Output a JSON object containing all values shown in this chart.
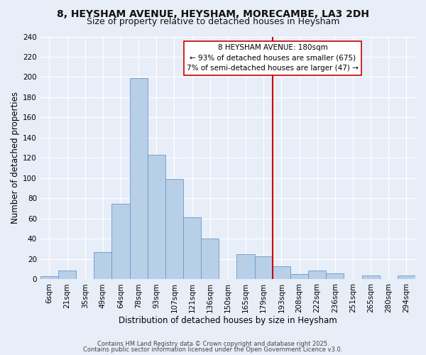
{
  "title": "8, HEYSHAM AVENUE, HEYSHAM, MORECAMBE, LA3 2DH",
  "subtitle": "Size of property relative to detached houses in Heysham",
  "xlabel": "Distribution of detached houses by size in Heysham",
  "ylabel": "Number of detached properties",
  "bar_labels": [
    "6sqm",
    "21sqm",
    "35sqm",
    "49sqm",
    "64sqm",
    "78sqm",
    "93sqm",
    "107sqm",
    "121sqm",
    "136sqm",
    "150sqm",
    "165sqm",
    "179sqm",
    "193sqm",
    "208sqm",
    "222sqm",
    "236sqm",
    "251sqm",
    "265sqm",
    "280sqm",
    "294sqm"
  ],
  "bar_values": [
    3,
    9,
    0,
    27,
    75,
    199,
    123,
    99,
    61,
    40,
    0,
    25,
    23,
    13,
    5,
    9,
    6,
    0,
    4,
    0,
    4
  ],
  "bar_color": "#b8cfe8",
  "bar_edge_color": "#6699cc",
  "ylim": [
    0,
    240
  ],
  "yticks": [
    0,
    20,
    40,
    60,
    80,
    100,
    120,
    140,
    160,
    180,
    200,
    220,
    240
  ],
  "vline_x": 12.5,
  "vline_color": "#cc0000",
  "annotation_title": "8 HEYSHAM AVENUE: 180sqm",
  "annotation_line1": "← 93% of detached houses are smaller (675)",
  "annotation_line2": "7% of semi-detached houses are larger (47) →",
  "annotation_box_edge": "#cc0000",
  "footer1": "Contains HM Land Registry data © Crown copyright and database right 2025.",
  "footer2": "Contains public sector information licensed under the Open Government Licence v3.0.",
  "bg_color": "#e8eef8",
  "grid_color": "#ffffff",
  "title_fontsize": 10,
  "subtitle_fontsize": 9,
  "axis_label_fontsize": 8.5,
  "tick_fontsize": 7.5,
  "footer_fontsize": 6
}
